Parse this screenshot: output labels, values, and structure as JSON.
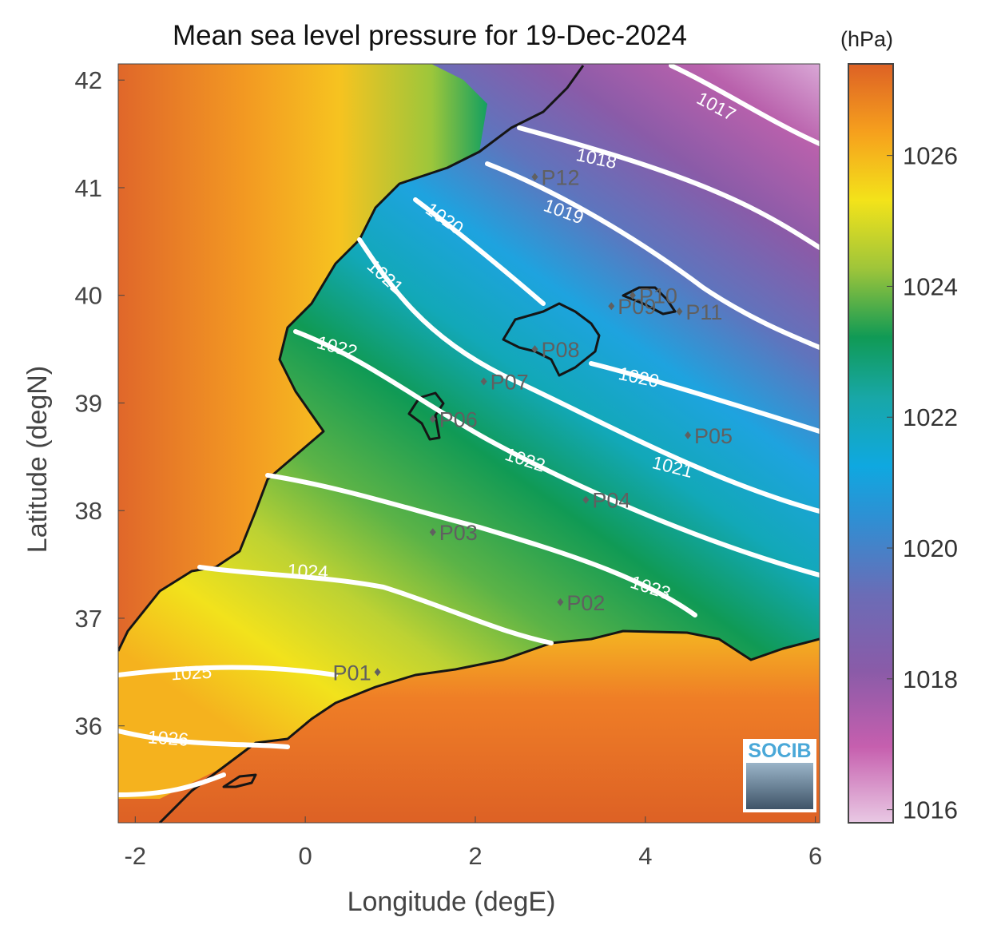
{
  "title": "Mean sea level pressure for 19-Dec-2024",
  "x_label": "Longitude (degE)",
  "y_label": "Latitude (degN)",
  "x_ticks": [
    "-2",
    "0",
    "2",
    "4",
    "6"
  ],
  "y_ticks": [
    "36",
    "37",
    "38",
    "39",
    "40",
    "41",
    "42"
  ],
  "colorbar": {
    "unit": "(hPa)",
    "ticks": [
      "1016",
      "1018",
      "1020",
      "1022",
      "1024",
      "1026"
    ],
    "range": [
      1015.8,
      1027.4
    ],
    "colors": [
      "#e9c9e4",
      "#c65fae",
      "#7e5ba6",
      "#5c7fc3",
      "#0fa8e0",
      "#18a7a7",
      "#109a55",
      "#9ec53a",
      "#f3e31a",
      "#f6a01d",
      "#dd6125"
    ]
  },
  "contour_labels": [
    "1017",
    "1018",
    "1019",
    "1020",
    "1020",
    "1021",
    "1021",
    "1022",
    "1022",
    "1023",
    "1024",
    "1025",
    "1026"
  ],
  "points": [
    {
      "label": "P01",
      "lon": 0.85,
      "lat": 36.5
    },
    {
      "label": "P02",
      "lon": 3.0,
      "lat": 37.15
    },
    {
      "label": "P03",
      "lon": 1.5,
      "lat": 37.8
    },
    {
      "label": "P04",
      "lon": 3.3,
      "lat": 38.1
    },
    {
      "label": "P05",
      "lon": 4.5,
      "lat": 38.7
    },
    {
      "label": "P06",
      "lon": 1.5,
      "lat": 38.85
    },
    {
      "label": "P07",
      "lon": 2.1,
      "lat": 39.2
    },
    {
      "label": "P08",
      "lon": 2.7,
      "lat": 39.5
    },
    {
      "label": "P09",
      "lon": 3.6,
      "lat": 39.9
    },
    {
      "label": "P10",
      "lon": 3.85,
      "lat": 40.0
    },
    {
      "label": "P11",
      "lon": 4.4,
      "lat": 39.85
    },
    {
      "label": "P12",
      "lon": 2.7,
      "lat": 41.1
    }
  ],
  "logo": {
    "text": "SOCIB"
  },
  "map_extent": {
    "lon": [
      -2.2,
      6.05
    ],
    "lat": [
      35.1,
      42.15
    ]
  }
}
